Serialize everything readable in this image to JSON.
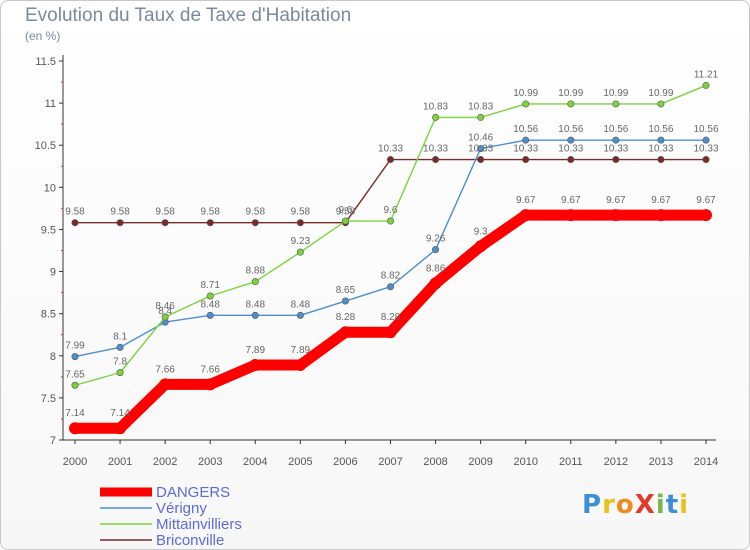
{
  "header": {
    "title": "Evolution du Taux de Taxe d'Habitation",
    "subtitle": "(en %)"
  },
  "logo": {
    "text": "ProXiti",
    "letters": [
      "P",
      "r",
      "o",
      "X",
      "i",
      "t",
      "i"
    ],
    "colors": [
      "#3a8fd6",
      "#e8c21a",
      "#f08a1c",
      "#e03a2a",
      "#7ab648",
      "#3a8fd6",
      "#e8c21a"
    ]
  },
  "chart_data": {
    "type": "line",
    "title": "Evolution du Taux de Taxe d'Habitation",
    "subtitle": "(en %)",
    "x": [
      "2000",
      "2001",
      "2002",
      "2003",
      "2004",
      "2005",
      "2006",
      "2007",
      "2008",
      "2009",
      "2010",
      "2011",
      "2012",
      "2013",
      "2014"
    ],
    "ylim": [
      7,
      11.5
    ],
    "yticks": [
      "7",
      "7.5",
      "8",
      "8.5",
      "9",
      "9.5",
      "10",
      "10.5",
      "11",
      "11.5"
    ],
    "ytick_values": [
      7,
      7.5,
      8,
      8.5,
      9,
      9.5,
      10,
      10.5,
      11,
      11.5
    ],
    "grid": false,
    "legend_position": "bottom-left",
    "series": [
      {
        "name": "DANGERS",
        "color": "#ff0000",
        "values": [
          7.14,
          7.14,
          7.66,
          7.66,
          7.89,
          7.89,
          8.28,
          8.28,
          8.86,
          9.3,
          9.67,
          9.67,
          9.67,
          9.67,
          9.67
        ],
        "labels": [
          "7.14",
          "7.14",
          "7.66",
          "7.66",
          "7.89",
          "7.89",
          "8.28",
          "8.28",
          "8.86",
          "9.3",
          "9.67",
          "9.67",
          "9.67",
          "9.67",
          "9.67"
        ]
      },
      {
        "name": "Vérigny",
        "color": "#4d8fcc",
        "values": [
          7.99,
          8.1,
          8.4,
          8.48,
          8.48,
          8.48,
          8.65,
          8.82,
          9.26,
          10.46,
          10.56,
          10.56,
          10.56,
          10.56,
          10.56
        ],
        "labels": [
          "7.99",
          "8.1",
          "8.4",
          "8.48",
          "8.48",
          "8.48",
          "8.65",
          "8.82",
          "9.26",
          "10.46",
          "10.56",
          "10.56",
          "10.56",
          "10.56",
          "10.56"
        ]
      },
      {
        "name": "Mittainvilliers",
        "color": "#7ad43a",
        "values": [
          7.65,
          7.8,
          8.46,
          8.71,
          8.88,
          9.23,
          9.6,
          9.6,
          10.83,
          10.83,
          10.99,
          10.99,
          10.99,
          10.99,
          11.21
        ],
        "labels": [
          "7.65",
          "7.8",
          "8.46",
          "8.71",
          "8.88",
          "9.23",
          "9.6",
          "9.6",
          "10.83",
          "10.83",
          "10.99",
          "10.99",
          "10.99",
          "10.99",
          "11.21"
        ]
      },
      {
        "name": "Briconville",
        "color": "#7a2a2a",
        "values": [
          9.58,
          9.58,
          9.58,
          9.58,
          9.58,
          9.58,
          9.58,
          10.33,
          10.33,
          10.33,
          10.33,
          10.33,
          10.33,
          10.33,
          10.33
        ],
        "labels": [
          "9.58",
          "9.58",
          "9.58",
          "9.58",
          "9.58",
          "9.58",
          "9.58",
          "10.33",
          "10.33",
          "10.33",
          "10.33",
          "10.33",
          "10.33",
          "10.33",
          "10.33"
        ]
      }
    ]
  }
}
